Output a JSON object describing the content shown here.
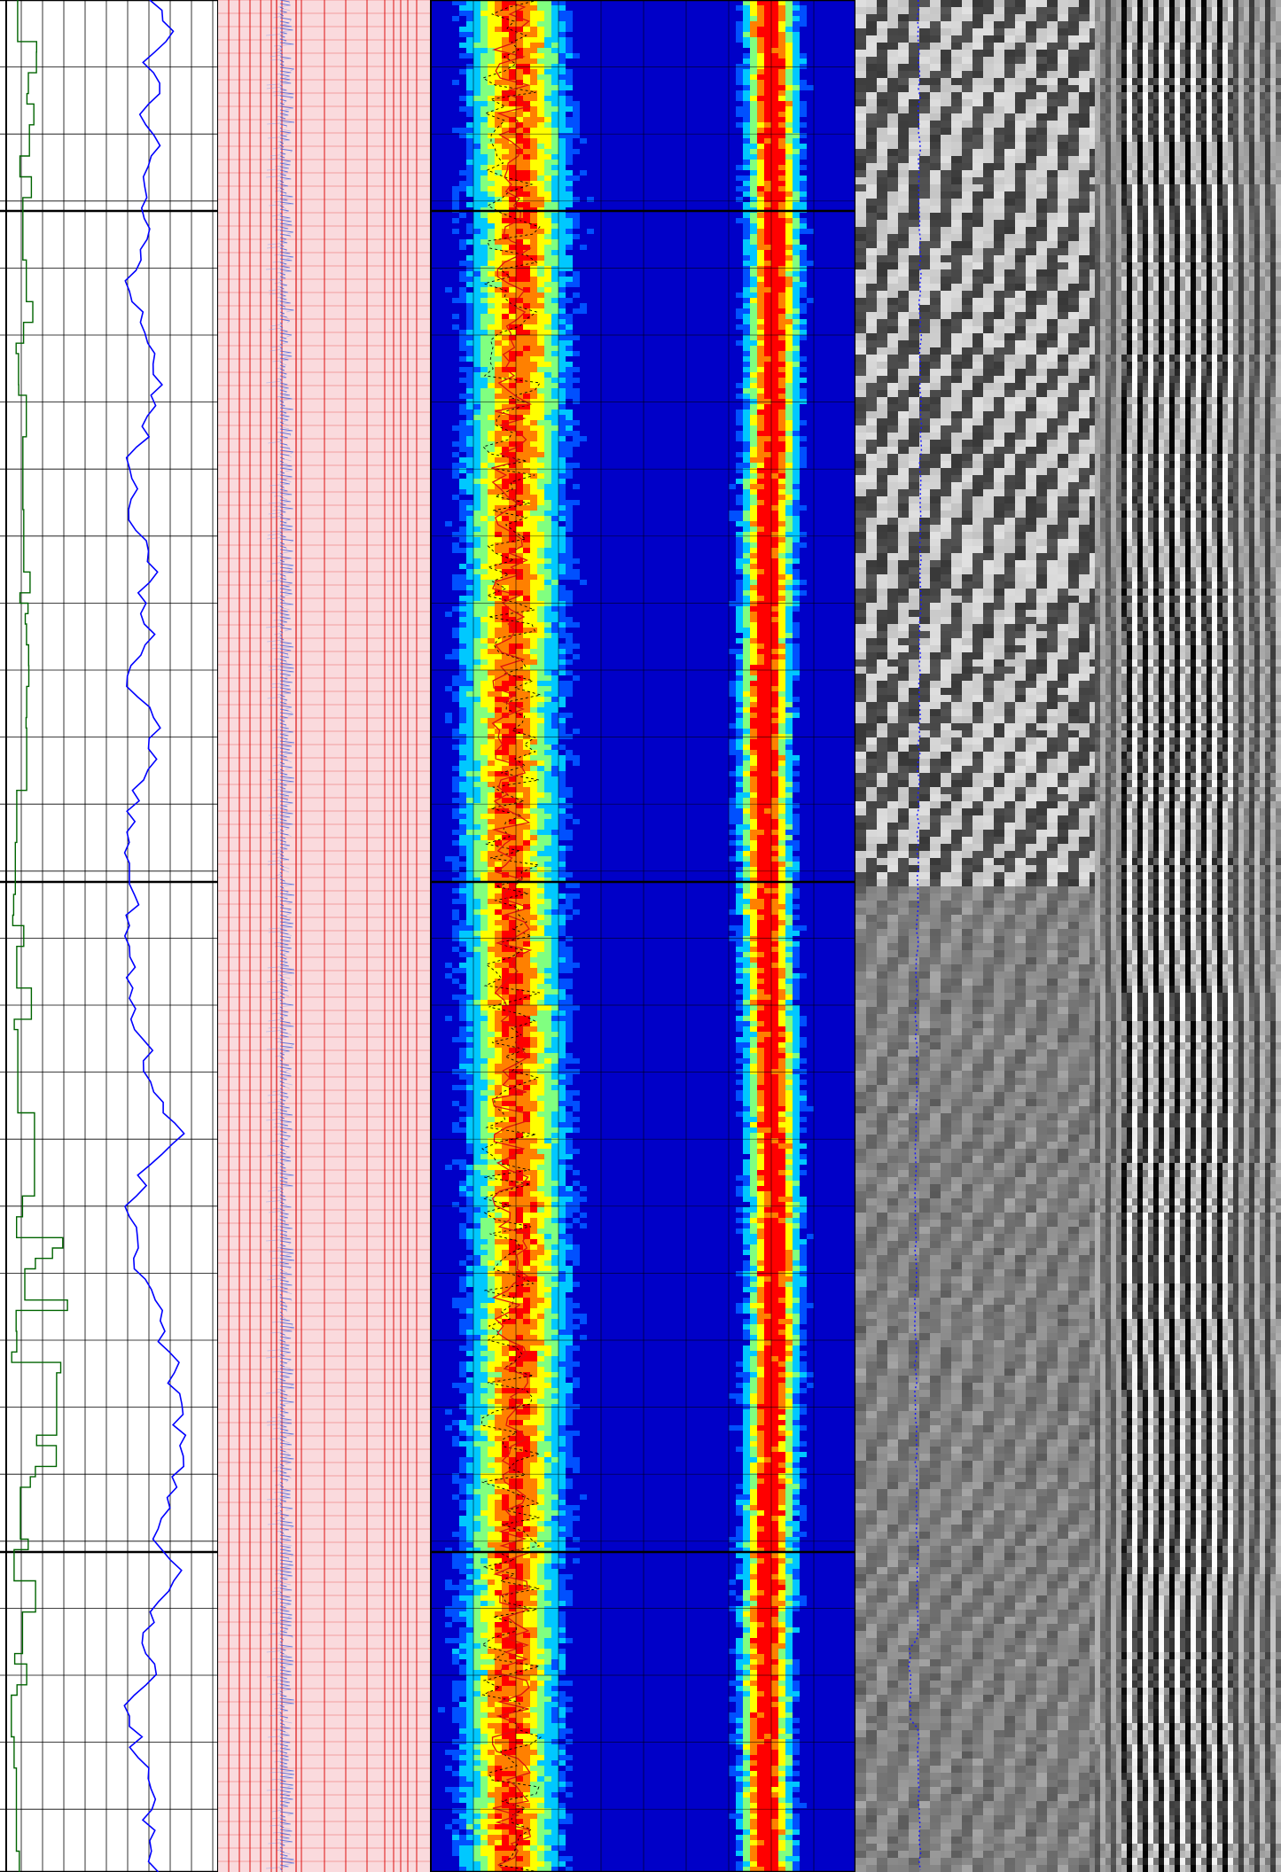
{
  "chart_data": [
    {
      "type": "line",
      "track": "track-1-curves",
      "grid": true,
      "depth_samples": 181,
      "series": [
        {
          "color": "#006400",
          "xlim": [
            0,
            1
          ],
          "values": []
        },
        {
          "color": "#0000ff",
          "xlim": [
            0,
            1
          ],
          "values": []
        }
      ]
    },
    {
      "type": "line",
      "track": "track-2-waveforms",
      "grid": true,
      "background": "#fadadd",
      "grid_color": "#dd1111",
      "series": [
        {
          "color": "#0000ff",
          "xlim": [
            0,
            1
          ],
          "values": []
        }
      ]
    },
    {
      "type": "heatmap",
      "track": "track-3-spectrum",
      "grid": true,
      "colorscale": [
        "#0000c8",
        "#0050ff",
        "#00c8ff",
        "#80ff80",
        "#ffff00",
        "#ff8000",
        "#ff0000"
      ],
      "bands": [
        {
          "center": 0.19,
          "width": 0.13,
          "peak": 0.8
        },
        {
          "center": 0.79,
          "width": 0.07,
          "peak": 1.0
        }
      ],
      "overlay_series": [
        {
          "color": "#dd1111",
          "values": []
        },
        {
          "color": "#000000",
          "style": "dashed",
          "values": []
        }
      ]
    },
    {
      "type": "heatmap",
      "track": "track-4-variable-density",
      "grid": false,
      "colorscale": [
        "#000000",
        "#808080",
        "#ffffff"
      ],
      "overlay_series": [
        {
          "color": "#0000ff",
          "style": "dotted",
          "values": []
        }
      ]
    }
  ],
  "colors": {
    "background": "#ffffff",
    "grid_minor": "#000000",
    "grid_major": "#000000",
    "curve_green": "#006400",
    "curve_blue": "#0000ff",
    "waveform_bg": "#fadadd",
    "waveform_grid": "#dd1111"
  }
}
